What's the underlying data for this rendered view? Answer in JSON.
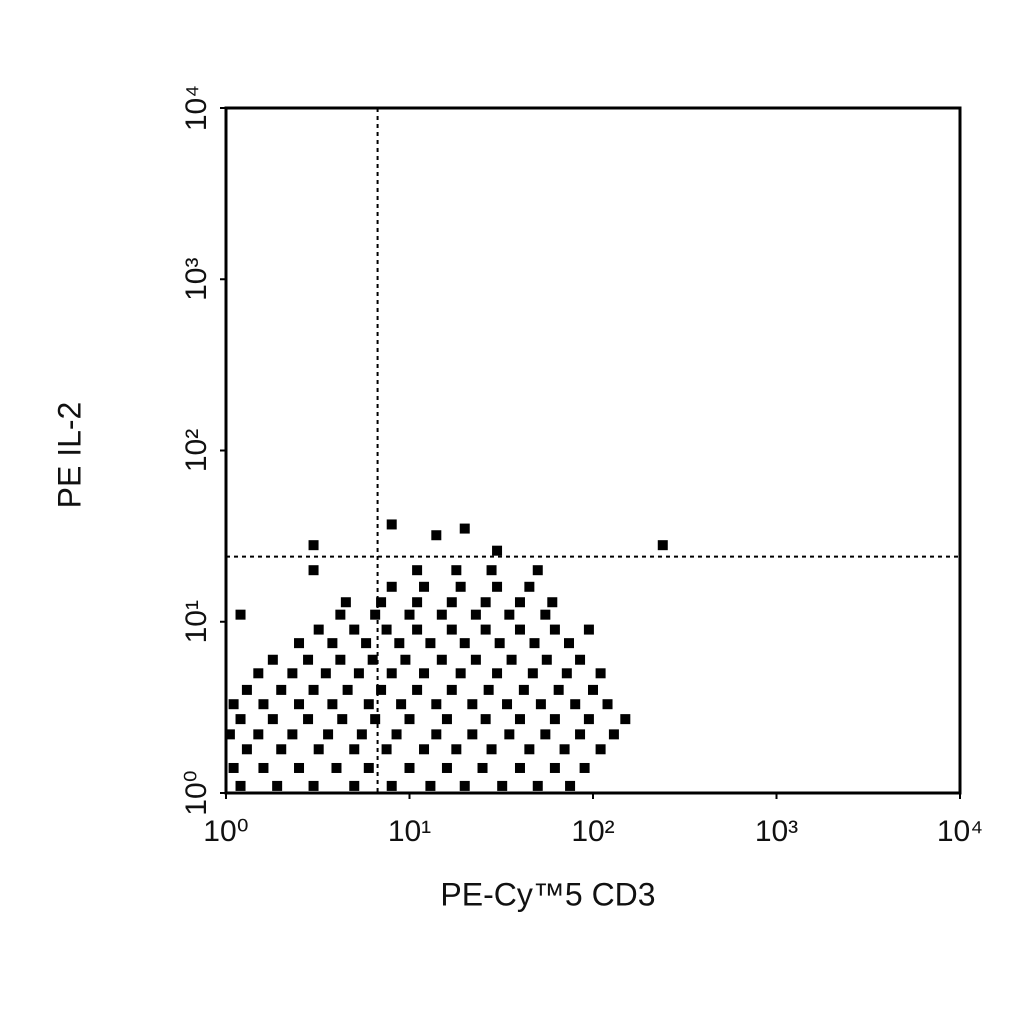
{
  "chart_data": {
    "type": "scatter",
    "log_x": true,
    "log_y": true,
    "color": "#000000",
    "x_label": "PE-Cy™5 CD3",
    "y_label": "PE IL-2",
    "xlim": [
      1,
      10000
    ],
    "ylim": [
      1,
      10000
    ],
    "xticks": [
      {
        "value": 1,
        "label": "10⁰"
      },
      {
        "value": 10,
        "label": "10¹"
      },
      {
        "value": 100,
        "label": "10²"
      },
      {
        "value": 1000,
        "label": "10³"
      },
      {
        "value": 10000,
        "label": "10⁴"
      }
    ],
    "yticks": [
      {
        "value": 1,
        "label": "10⁰"
      },
      {
        "value": 10,
        "label": "10¹"
      },
      {
        "value": 100,
        "label": "10²"
      },
      {
        "value": 1000,
        "label": "10³"
      },
      {
        "value": 10000,
        "label": "10⁴"
      }
    ],
    "gates": {
      "x": 6.7,
      "y": 24
    },
    "x": [
      1.2,
      1.9,
      3,
      5,
      8,
      13,
      20,
      32,
      50,
      75,
      1.1,
      1.6,
      2.5,
      4,
      6,
      10,
      16,
      25,
      40,
      62,
      90,
      1.3,
      2,
      3.2,
      5,
      7.5,
      12,
      18,
      28,
      45,
      70,
      110,
      1.05,
      1.5,
      2.3,
      3.6,
      5.5,
      8.5,
      14,
      22,
      35,
      55,
      85,
      130,
      1.2,
      1.8,
      2.8,
      4.3,
      6.5,
      10,
      16,
      26,
      40,
      62,
      95,
      150,
      1.1,
      1.6,
      2.5,
      3.8,
      6,
      9,
      14,
      22,
      34,
      52,
      80,
      120,
      1.3,
      2,
      3,
      4.6,
      7,
      11,
      17,
      27,
      42,
      65,
      100,
      1.5,
      2.3,
      3.5,
      5.3,
      8,
      12,
      19,
      30,
      47,
      72,
      110,
      1.8,
      2.8,
      4.2,
      6.3,
      9.5,
      15,
      23,
      36,
      56,
      85,
      2.5,
      3.8,
      5.8,
      8.8,
      13,
      20,
      31,
      48,
      74,
      3.2,
      5,
      7.5,
      11,
      17,
      26,
      40,
      62,
      95,
      1.2,
      4.2,
      6.5,
      10,
      15,
      23,
      35,
      55,
      4.5,
      7,
      11,
      17,
      26,
      40,
      60,
      8,
      12,
      19,
      30,
      45,
      3,
      11,
      18,
      28,
      50,
      8,
      14,
      20,
      240,
      3,
      30
    ],
    "values": [
      1.1,
      1.1,
      1.1,
      1.1,
      1.1,
      1.1,
      1.1,
      1.1,
      1.1,
      1.1,
      1.4,
      1.4,
      1.4,
      1.4,
      1.4,
      1.4,
      1.4,
      1.4,
      1.4,
      1.4,
      1.4,
      1.8,
      1.8,
      1.8,
      1.8,
      1.8,
      1.8,
      1.8,
      1.8,
      1.8,
      1.8,
      1.8,
      2.2,
      2.2,
      2.2,
      2.2,
      2.2,
      2.2,
      2.2,
      2.2,
      2.2,
      2.2,
      2.2,
      2.2,
      2.7,
      2.7,
      2.7,
      2.7,
      2.7,
      2.7,
      2.7,
      2.7,
      2.7,
      2.7,
      2.7,
      2.7,
      3.3,
      3.3,
      3.3,
      3.3,
      3.3,
      3.3,
      3.3,
      3.3,
      3.3,
      3.3,
      3.3,
      3.3,
      4,
      4,
      4,
      4,
      4,
      4,
      4,
      4,
      4,
      4,
      4,
      5,
      5,
      5,
      5,
      5,
      5,
      5,
      5,
      5,
      5,
      5,
      6,
      6,
      6,
      6,
      6,
      6,
      6,
      6,
      6,
      6,
      7.5,
      7.5,
      7.5,
      7.5,
      7.5,
      7.5,
      7.5,
      7.5,
      7.5,
      9,
      9,
      9,
      9,
      9,
      9,
      9,
      9,
      9,
      11,
      11,
      11,
      11,
      11,
      11,
      11,
      11,
      13,
      13,
      13,
      13,
      13,
      13,
      13,
      16,
      16,
      16,
      16,
      16,
      20,
      20,
      20,
      20,
      20,
      37,
      32,
      35,
      28,
      28,
      26
    ]
  }
}
